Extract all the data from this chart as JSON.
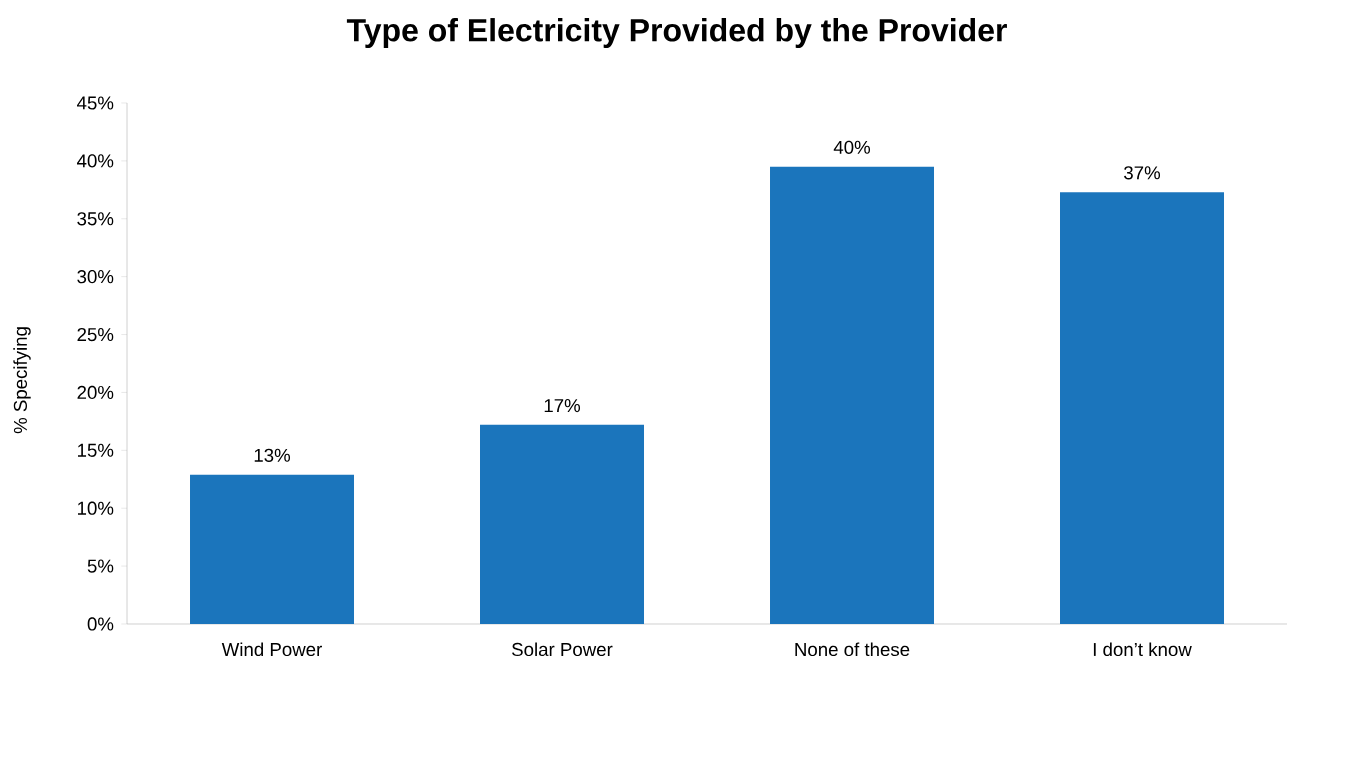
{
  "chart_data": {
    "type": "bar",
    "title": "Type of Electricity Provided by the Provider",
    "ylabel": "% Specifying",
    "categories": [
      "Wind Power",
      "Solar Power",
      "None of these",
      "I don’t know"
    ],
    "values": [
      12.9,
      17.2,
      39.5,
      37.3
    ],
    "value_labels": [
      "13%",
      "17%",
      "40%",
      "37%"
    ],
    "color": "#1b75bc",
    "ylim": [
      0,
      45
    ],
    "yticks": [
      {
        "value": 0,
        "label": "0%"
      },
      {
        "value": 5,
        "label": "5%"
      },
      {
        "value": 10,
        "label": "10%"
      },
      {
        "value": 15,
        "label": "15%"
      },
      {
        "value": 20,
        "label": "20%"
      },
      {
        "value": 25,
        "label": "25%"
      },
      {
        "value": 30,
        "label": "30%"
      },
      {
        "value": 35,
        "label": "35%"
      },
      {
        "value": 40,
        "label": "40%"
      },
      {
        "value": 45,
        "label": "45%"
      }
    ]
  }
}
